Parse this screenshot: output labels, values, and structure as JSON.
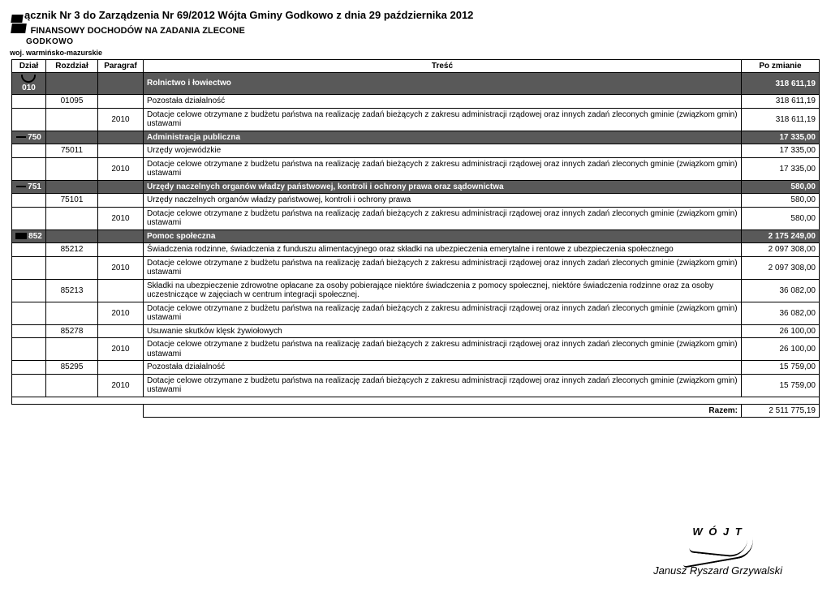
{
  "header": {
    "line1_prefix": "ącznik Nr 3 do Zarządzenia Nr 69/2012 Wójta Gminy Godkowo z dnia 29 października 2012",
    "line2": "DOCHODÓW NA ZADANIA ZLECONE",
    "stamp1": "GODKOWO",
    "stamp2": "woj. warmińsko-mazurskie"
  },
  "columns": {
    "dzial": "Dział",
    "rozdzial": "Rozdział",
    "paragraf": "Paragraf",
    "tresc": "Treść",
    "po_zmianie": "Po zmianie"
  },
  "rows": [
    {
      "type": "dark",
      "dzial_icon": "arc",
      "dzial": "010",
      "tresc": "Rolnictwo i łowiectwo",
      "amount": "318 611,19"
    },
    {
      "type": "plain",
      "rozdzial": "01095",
      "tresc": "Pozostała działalność",
      "amount": "318 611,19"
    },
    {
      "type": "plain",
      "paragraf": "2010",
      "tresc": "Dotacje celowe otrzymane z budżetu państwa na realizację zadań bieżących z zakresu administracji rządowej oraz innych zadań zleconych gminie (związkom gmin) ustawami",
      "amount": "318 611,19"
    },
    {
      "type": "dark",
      "dzial_icon": "dash",
      "dzial": "750",
      "tresc": "Administracja publiczna",
      "amount": "17 335,00"
    },
    {
      "type": "plain",
      "rozdzial": "75011",
      "tresc": "Urzędy wojewódzkie",
      "amount": "17 335,00"
    },
    {
      "type": "plain",
      "paragraf": "2010",
      "tresc": "Dotacje celowe otrzymane z budżetu państwa na realizację zadań bieżących z zakresu administracji rządowej oraz innych zadań zleconych gminie (związkom gmin) ustawami",
      "amount": "17 335,00"
    },
    {
      "type": "dark",
      "dzial_icon": "dash",
      "dzial": "751",
      "tresc": "Urzędy naczelnych organów władzy państwowej, kontroli i ochrony prawa oraz sądownictwa",
      "amount": "580,00"
    },
    {
      "type": "plain",
      "rozdzial": "75101",
      "tresc": "Urzędy naczelnych organów władzy państwowej, kontroli i ochrony prawa",
      "amount": "580,00"
    },
    {
      "type": "plain",
      "paragraf": "2010",
      "tresc": "Dotacje celowe otrzymane z budżetu państwa na realizację zadań bieżących z zakresu administracji rządowej oraz innych zadań zleconych gminie (związkom gmin) ustawami",
      "amount": "580,00"
    },
    {
      "type": "dark",
      "dzial_icon": "block",
      "dzial": "852",
      "tresc": "Pomoc społeczna",
      "amount": "2 175 249,00"
    },
    {
      "type": "plain",
      "rozdzial": "85212",
      "tresc": "Świadczenia rodzinne, świadczenia z funduszu alimentacyjnego oraz składki na ubezpieczenia emerytalne i rentowe z ubezpieczenia społecznego",
      "amount": "2 097 308,00"
    },
    {
      "type": "plain",
      "paragraf": "2010",
      "tresc": "Dotacje celowe otrzymane z budżetu państwa na realizację zadań bieżących z zakresu administracji rządowej oraz innych zadań zleconych gminie (związkom gmin) ustawami",
      "amount": "2 097 308,00"
    },
    {
      "type": "plain",
      "rozdzial": "85213",
      "tresc": "Składki na ubezpieczenie zdrowotne opłacane za osoby pobierające niektóre świadczenia z pomocy społecznej, niektóre świadczenia rodzinne oraz za osoby uczestniczące w zajęciach w centrum integracji społecznej.",
      "amount": "36 082,00"
    },
    {
      "type": "plain",
      "paragraf": "2010",
      "tresc": "Dotacje celowe otrzymane z budżetu państwa na realizację zadań bieżących z zakresu administracji rządowej oraz innych zadań zleconych gminie (związkom gmin) ustawami",
      "amount": "36 082,00"
    },
    {
      "type": "plain",
      "rozdzial": "85278",
      "tresc": "Usuwanie skutków klęsk żywiołowych",
      "amount": "26 100,00"
    },
    {
      "type": "plain",
      "paragraf": "2010",
      "tresc": "Dotacje celowe otrzymane z budżetu państwa na realizację zadań bieżących z zakresu administracji rządowej oraz innych zadań zleconych gminie (związkom gmin) ustawami",
      "amount": "26 100,00"
    },
    {
      "type": "plain",
      "rozdzial": "85295",
      "tresc": "Pozostała działalność",
      "amount": "15 759,00"
    },
    {
      "type": "plain",
      "paragraf": "2010",
      "tresc": "Dotacje celowe otrzymane z budżetu państwa na realizację zadań bieżących z zakresu administracji rządowej oraz innych zadań zleconych gminie (związkom gmin) ustawami",
      "amount": "15 759,00"
    }
  ],
  "total": {
    "label": "Razem:",
    "amount": "2 511 775,19"
  },
  "signature": {
    "title": "W Ó J T",
    "name_prefix": "Janusz ",
    "name_rest": "Ryszard Grzywalski"
  }
}
